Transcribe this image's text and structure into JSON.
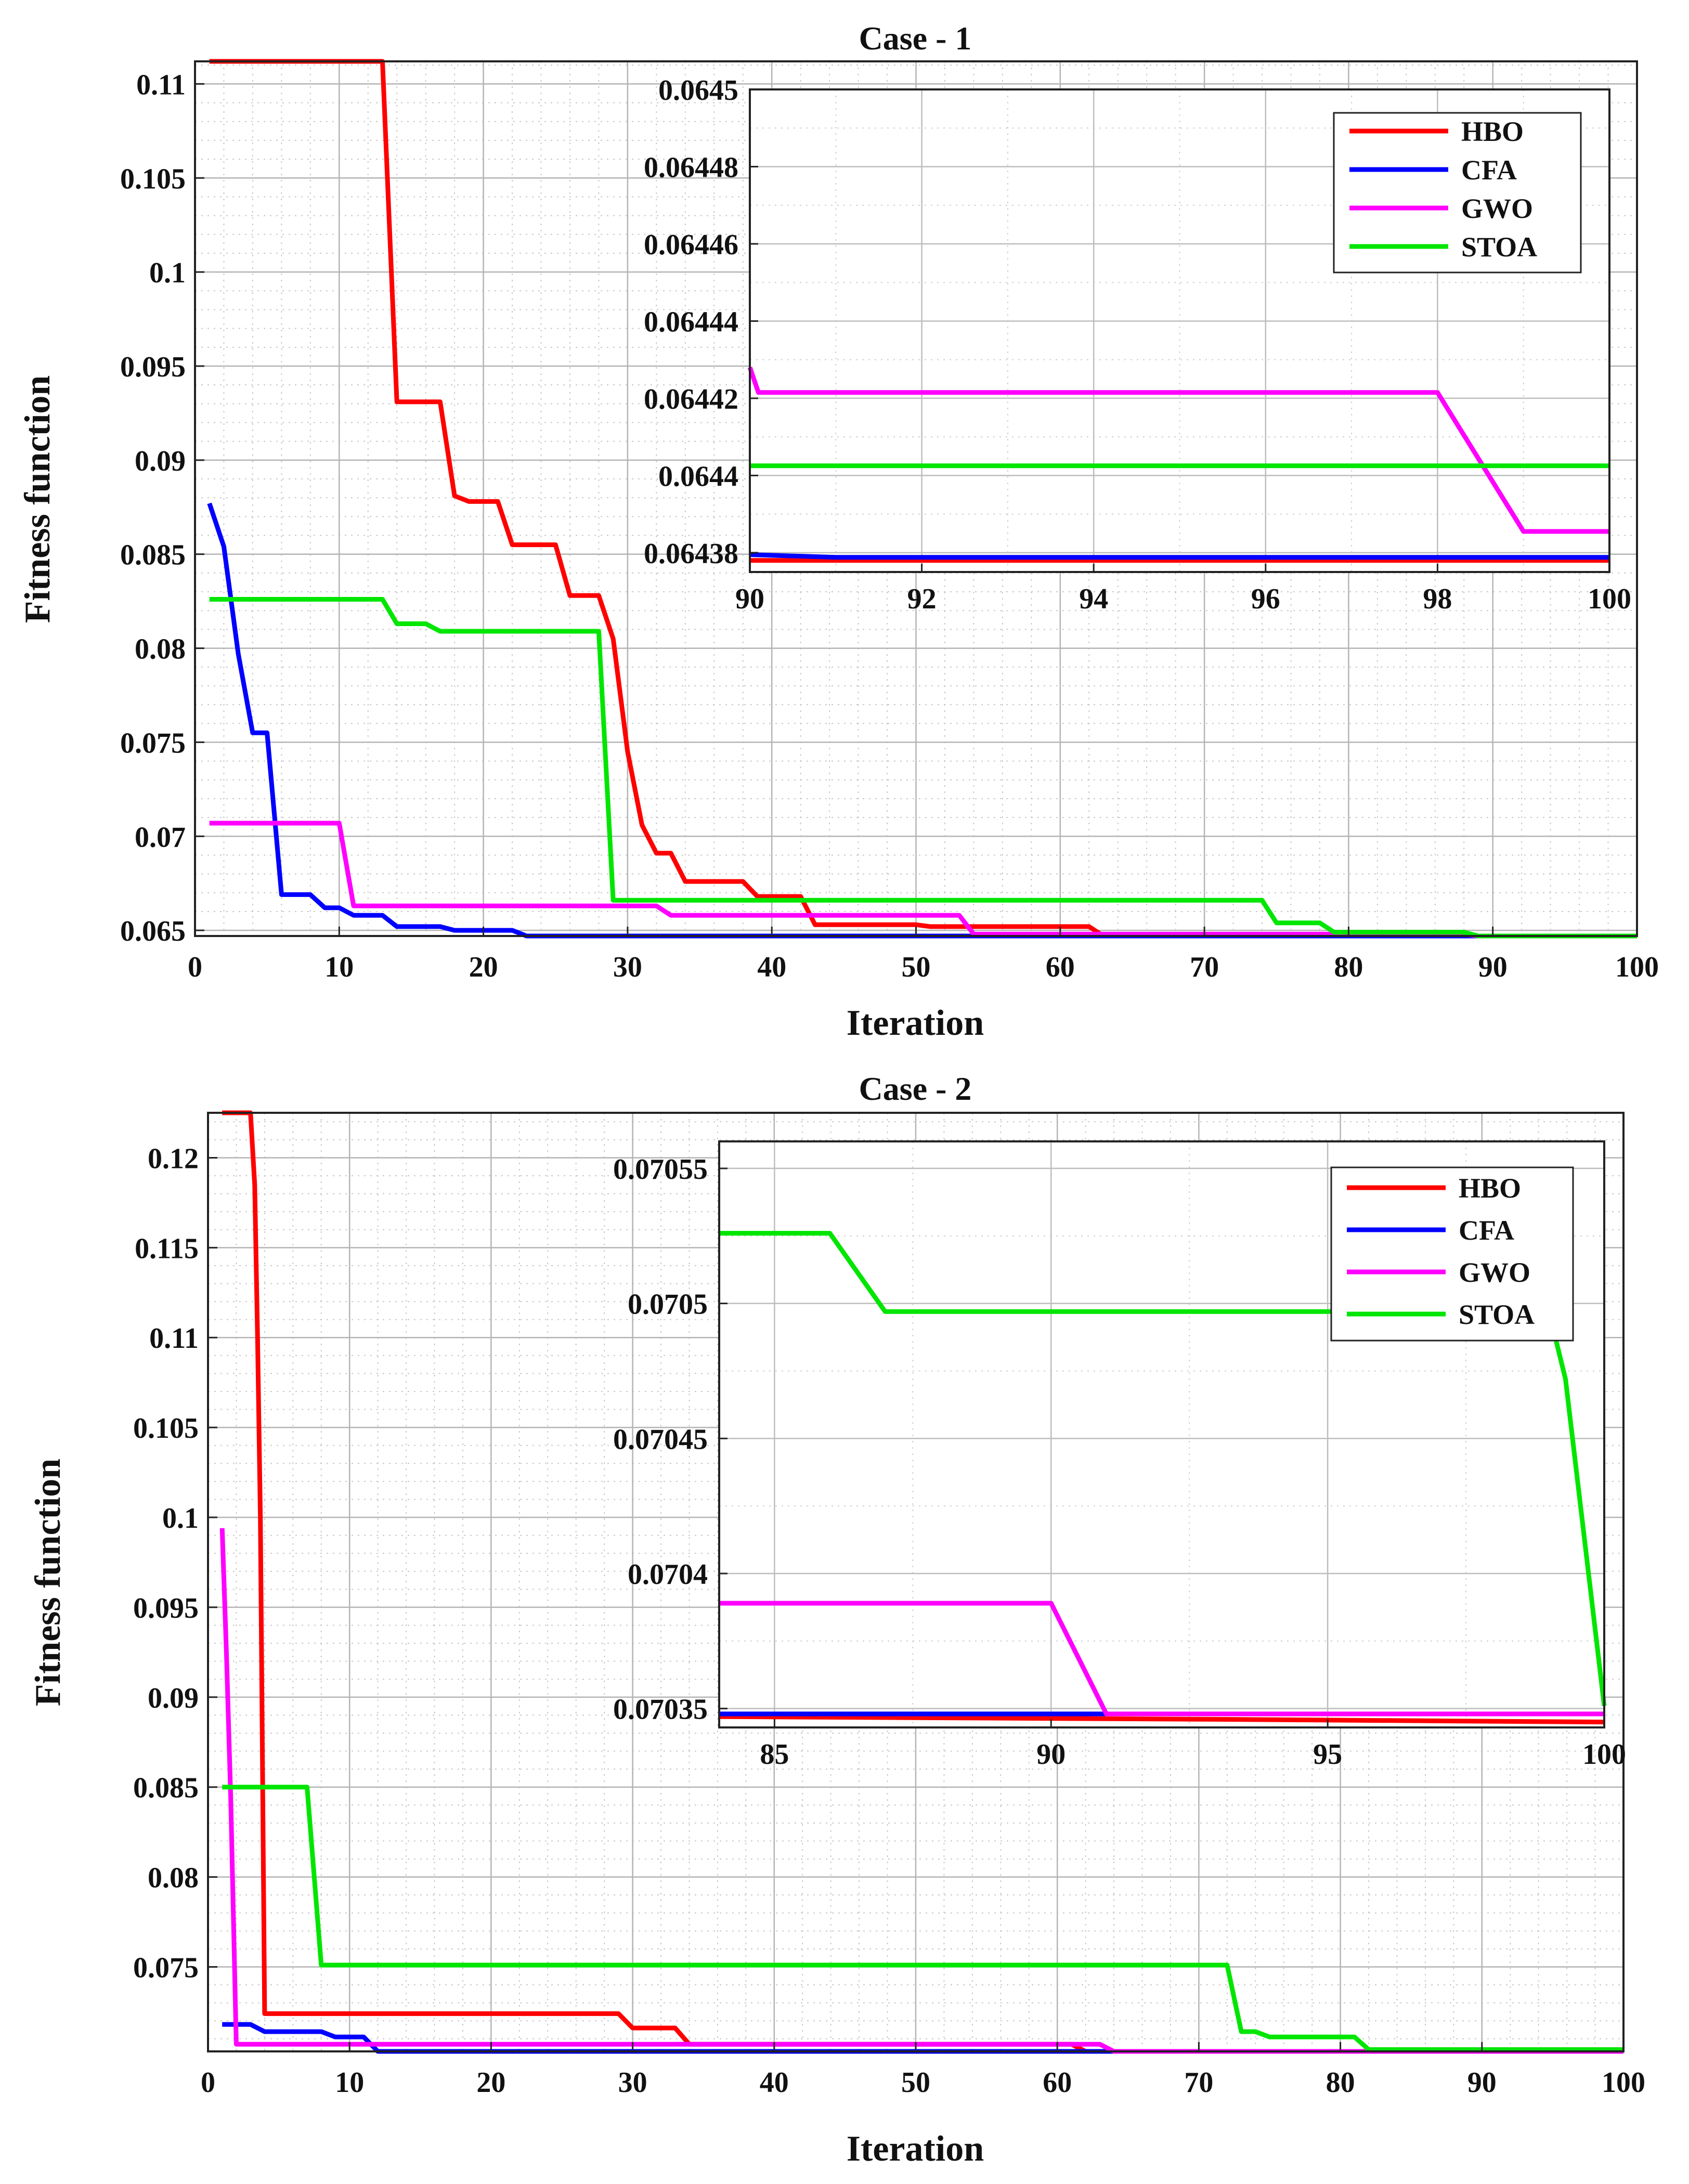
{
  "chart_data": [
    {
      "type": "line",
      "title": "Case - 1",
      "xlabel": "Iteration",
      "ylabel": "Fitness function",
      "xlim": [
        0,
        100
      ],
      "ylim": [
        0.0647,
        0.1112
      ],
      "xticks": [
        "0",
        "10",
        "20",
        "30",
        "40",
        "50",
        "60",
        "70",
        "80",
        "90",
        "100"
      ],
      "yticks": [
        "0.065",
        "0.07",
        "0.075",
        "0.08",
        "0.085",
        "0.09",
        "0.095",
        "0.1",
        "0.105",
        "0.11"
      ],
      "grid": true,
      "series": [
        {
          "name": "HBO",
          "color": "#ff0000",
          "points": [
            [
              1,
              0.1112
            ],
            [
              13,
              0.1112
            ],
            [
              14,
              0.0931
            ],
            [
              17,
              0.0931
            ],
            [
              18,
              0.0881
            ],
            [
              19,
              0.0878
            ],
            [
              21,
              0.0878
            ],
            [
              22,
              0.0855
            ],
            [
              25,
              0.0855
            ],
            [
              26,
              0.0828
            ],
            [
              28,
              0.0828
            ],
            [
              29,
              0.0805
            ],
            [
              30,
              0.0745
            ],
            [
              31,
              0.0706
            ],
            [
              32,
              0.0691
            ],
            [
              33,
              0.0691
            ],
            [
              34,
              0.0676
            ],
            [
              38,
              0.0676
            ],
            [
              39,
              0.0668
            ],
            [
              42,
              0.0668
            ],
            [
              43,
              0.0653
            ],
            [
              50,
              0.0653
            ],
            [
              51,
              0.0652
            ],
            [
              62,
              0.0652
            ],
            [
              63,
              0.0647
            ],
            [
              100,
              0.0647
            ]
          ]
        },
        {
          "name": "CFA",
          "color": "#0000ff",
          "points": [
            [
              1,
              0.0877
            ],
            [
              2,
              0.0854
            ],
            [
              3,
              0.0797
            ],
            [
              4,
              0.0755
            ],
            [
              5,
              0.0755
            ],
            [
              6,
              0.0669
            ],
            [
              8,
              0.0669
            ],
            [
              9,
              0.0662
            ],
            [
              10,
              0.0662
            ],
            [
              11,
              0.0658
            ],
            [
              13,
              0.0658
            ],
            [
              14,
              0.0652
            ],
            [
              17,
              0.0652
            ],
            [
              18,
              0.065
            ],
            [
              22,
              0.065
            ],
            [
              23,
              0.0647
            ],
            [
              100,
              0.0647
            ]
          ]
        },
        {
          "name": "GWO",
          "color": "#ff00ff",
          "points": [
            [
              1,
              0.0707
            ],
            [
              10,
              0.0707
            ],
            [
              11,
              0.0663
            ],
            [
              32,
              0.0663
            ],
            [
              33,
              0.0658
            ],
            [
              53,
              0.0658
            ],
            [
              54,
              0.0648
            ],
            [
              88,
              0.0648
            ],
            [
              89,
              0.0647
            ],
            [
              100,
              0.0647
            ]
          ]
        },
        {
          "name": "STOA",
          "color": "#00e600",
          "points": [
            [
              1,
              0.0826
            ],
            [
              13,
              0.0826
            ],
            [
              14,
              0.0813
            ],
            [
              16,
              0.0813
            ],
            [
              17,
              0.0809
            ],
            [
              28,
              0.0809
            ],
            [
              29,
              0.0666
            ],
            [
              74,
              0.0666
            ],
            [
              75,
              0.0654
            ],
            [
              78,
              0.0654
            ],
            [
              79,
              0.0649
            ],
            [
              88,
              0.0649
            ],
            [
              89,
              0.0647
            ],
            [
              100,
              0.0647
            ]
          ]
        }
      ],
      "inset": {
        "xlim": [
          90,
          100
        ],
        "ylim": [
          0.064375,
          0.0645
        ],
        "xticks": [
          "90",
          "92",
          "94",
          "96",
          "98",
          "100"
        ],
        "yticks": [
          "0.06438",
          "0.0644",
          "0.06442",
          "0.06444",
          "0.06446",
          "0.06448",
          "0.0645"
        ],
        "legend": [
          "HBO",
          "CFA",
          "GWO",
          "STOA"
        ],
        "legend_position": "top-right",
        "series": [
          {
            "name": "HBO",
            "color": "#ff0000",
            "points": [
              [
                90,
                0.064378
              ],
              [
                100,
                0.064378
              ]
            ]
          },
          {
            "name": "CFA",
            "color": "#0000ff",
            "points": [
              [
                90,
                0.0643795
              ],
              [
                91,
                0.0643788
              ],
              [
                100,
                0.0643788
              ]
            ]
          },
          {
            "name": "GWO",
            "color": "#ff00ff",
            "points": [
              [
                90,
                0.064428
              ],
              [
                90.1,
                0.0644215
              ],
              [
                98,
                0.0644215
              ],
              [
                99,
                0.0643855
              ],
              [
                100,
                0.0643855
              ]
            ]
          },
          {
            "name": "STOA",
            "color": "#00e600",
            "points": [
              [
                90,
                0.0644025
              ],
              [
                100,
                0.0644025
              ]
            ]
          }
        ]
      }
    },
    {
      "type": "line",
      "title": "Case - 2",
      "xlabel": "Iteration",
      "ylabel": "Fitness function",
      "xlim": [
        0,
        100
      ],
      "ylim": [
        0.0703,
        0.1225
      ],
      "xticks": [
        "0",
        "10",
        "20",
        "30",
        "40",
        "50",
        "60",
        "70",
        "80",
        "90",
        "100"
      ],
      "yticks": [
        "0.075",
        "0.08",
        "0.085",
        "0.09",
        "0.095",
        "0.1",
        "0.105",
        "0.11",
        "0.115",
        "0.12"
      ],
      "grid": true,
      "series": [
        {
          "name": "HBO",
          "color": "#ff0000",
          "points": [
            [
              1,
              0.1225
            ],
            [
              3,
              0.1225
            ],
            [
              3.3,
              0.1185
            ],
            [
              3.5,
              0.11
            ],
            [
              3.7,
              0.1
            ],
            [
              4,
              0.0724
            ],
            [
              29,
              0.0724
            ],
            [
              30,
              0.0716
            ],
            [
              33,
              0.0716
            ],
            [
              34,
              0.0707
            ],
            [
              61,
              0.0707
            ],
            [
              62,
              0.0703
            ],
            [
              100,
              0.0703
            ]
          ]
        },
        {
          "name": "CFA",
          "color": "#0000ff",
          "points": [
            [
              1,
              0.0718
            ],
            [
              3,
              0.0718
            ],
            [
              4,
              0.0714
            ],
            [
              8,
              0.0714
            ],
            [
              9,
              0.0711
            ],
            [
              11,
              0.0711
            ],
            [
              12,
              0.0703
            ],
            [
              100,
              0.0703
            ]
          ]
        },
        {
          "name": "GWO",
          "color": "#ff00ff",
          "points": [
            [
              1,
              0.0994
            ],
            [
              1.3,
              0.0925
            ],
            [
              1.6,
              0.0845
            ],
            [
              2,
              0.0707
            ],
            [
              63,
              0.0707
            ],
            [
              64,
              0.0703
            ],
            [
              100,
              0.0703
            ]
          ]
        },
        {
          "name": "STOA",
          "color": "#00e600",
          "points": [
            [
              1,
              0.085
            ],
            [
              7,
              0.085
            ],
            [
              8,
              0.0751
            ],
            [
              72,
              0.0751
            ],
            [
              73,
              0.0714
            ],
            [
              74,
              0.0714
            ],
            [
              75,
              0.0711
            ],
            [
              81,
              0.0711
            ],
            [
              82,
              0.0704
            ],
            [
              100,
              0.0704
            ]
          ]
        }
      ],
      "inset": {
        "xlim": [
          84,
          100
        ],
        "ylim": [
          0.070343,
          0.07056
        ],
        "xticks": [
          "85",
          "90",
          "95",
          "100"
        ],
        "yticks": [
          "0.07035",
          "0.0704",
          "0.07045",
          "0.0705",
          "0.07055"
        ],
        "legend": [
          "HBO",
          "CFA",
          "GWO",
          "STOA"
        ],
        "legend_position": "top-right",
        "series": [
          {
            "name": "HBO",
            "color": "#ff0000",
            "points": [
              [
                84,
                0.070347
              ],
              [
                93,
                0.070346
              ],
              [
                100,
                0.070345
              ]
            ]
          },
          {
            "name": "CFA",
            "color": "#0000ff",
            "points": [
              [
                84,
                0.070348
              ],
              [
                100,
                0.070348
              ]
            ]
          },
          {
            "name": "GWO",
            "color": "#ff00ff",
            "points": [
              [
                84,
                0.070389
              ],
              [
                90,
                0.070389
              ],
              [
                91,
                0.070348
              ],
              [
                100,
                0.070348
              ]
            ]
          },
          {
            "name": "STOA",
            "color": "#00e600",
            "points": [
              [
                84,
                0.070526
              ],
              [
                86,
                0.070526
              ],
              [
                87,
                0.070497
              ],
              [
                99,
                0.070497
              ],
              [
                99.3,
                0.070472
              ],
              [
                100,
                0.070351
              ]
            ]
          }
        ]
      }
    }
  ]
}
